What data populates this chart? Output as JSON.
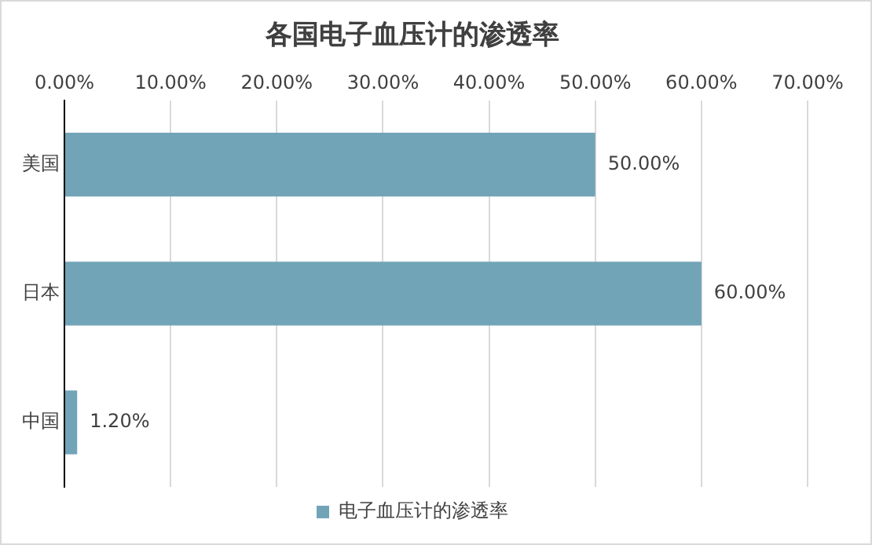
{
  "chart_data": {
    "type": "bar",
    "orientation": "horizontal",
    "title": "各国电子血压计的渗透率",
    "categories": [
      "美国",
      "日本",
      "中国"
    ],
    "series": [
      {
        "name": "电子血压计的渗透率",
        "color": "#72a4b8",
        "values": [
          50,
          60,
          1.2
        ]
      }
    ],
    "value_labels": [
      "50.00%",
      "60.00%",
      "1.20%"
    ],
    "xlim": [
      0,
      70
    ],
    "xticks": [
      {
        "value": 0,
        "label": "0.00%"
      },
      {
        "value": 10,
        "label": "10.00%"
      },
      {
        "value": 20,
        "label": "20.00%"
      },
      {
        "value": 30,
        "label": "30.00%"
      },
      {
        "value": 40,
        "label": "40.00%"
      },
      {
        "value": 50,
        "label": "50.00%"
      },
      {
        "value": 60,
        "label": "60.00%"
      },
      {
        "value": 70,
        "label": "70.00%"
      }
    ],
    "grid": "x",
    "legend": "bottom"
  }
}
